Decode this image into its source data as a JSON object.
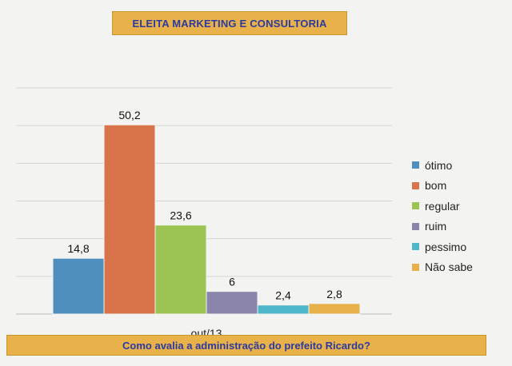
{
  "header": {
    "title": "ELEITA MARKETING E CONSULTORIA"
  },
  "footer": {
    "question": "Como avalia a administração do prefeito Ricardo?"
  },
  "chart_data": {
    "type": "bar",
    "categories": [
      "out/13"
    ],
    "series": [
      {
        "name": "ótimo",
        "values": [
          14.8
        ],
        "color": "#4f8fbf",
        "label": "14,8"
      },
      {
        "name": "bom",
        "values": [
          50.2
        ],
        "color": "#d9734a",
        "label": "50,2"
      },
      {
        "name": "regular",
        "values": [
          23.6
        ],
        "color": "#9cc452",
        "label": "23,6"
      },
      {
        "name": "ruim",
        "values": [
          6
        ],
        "color": "#8b84ab",
        "label": "6"
      },
      {
        "name": "pessimo",
        "values": [
          2.4
        ],
        "color": "#4fb7c9",
        "label": "2,4"
      },
      {
        "name": "Não sabe",
        "values": [
          2.8
        ],
        "color": "#e8b14a",
        "label": "2,8"
      }
    ],
    "ylim": [
      0,
      60
    ],
    "grid": true,
    "legend_position": "right"
  }
}
